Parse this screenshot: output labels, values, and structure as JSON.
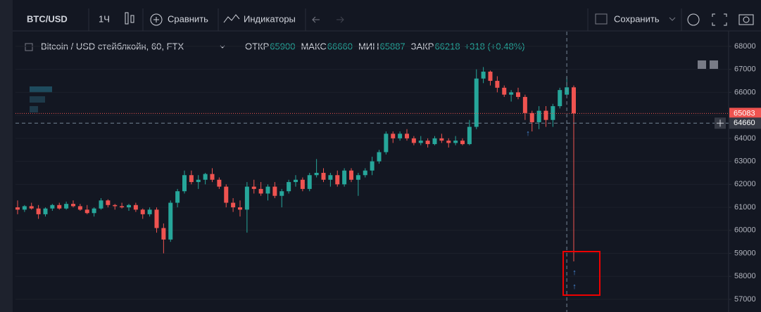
{
  "toolbar": {
    "symbol": "BTC/USD",
    "interval": "1Ч",
    "compare": "Сравнить",
    "indicators": "Индикаторы",
    "save": "Сохранить"
  },
  "chart_data": {
    "type": "candlestick",
    "title": "Bitcoin / USD стейблкойн, 60, FTX",
    "legend_labels": [
      "ОТКР",
      "МАКС",
      "МИН",
      "ЗАКР"
    ],
    "change_label": "+318 (+0.48%)",
    "legend_candle": 79,
    "up_color": "#26a69a",
    "down_color": "#ef5350",
    "ylim": [
      56450,
      68640
    ],
    "yticks": [
      57000,
      58000,
      59000,
      60000,
      61000,
      62000,
      63000,
      64000,
      65000,
      66000,
      67000,
      68000
    ],
    "grid": true,
    "crosshair_price": 64660,
    "ohlc": [
      [
        61000,
        61300,
        60700,
        60900
      ],
      [
        60900,
        61100,
        60800,
        61050
      ],
      [
        61050,
        61200,
        60900,
        60950
      ],
      [
        60950,
        61100,
        60500,
        60700
      ],
      [
        60700,
        61000,
        60600,
        60950
      ],
      [
        60950,
        61150,
        60850,
        61100
      ],
      [
        61100,
        61200,
        60900,
        60950
      ],
      [
        60950,
        61250,
        60900,
        61150
      ],
      [
        61150,
        61300,
        61000,
        61050
      ],
      [
        61050,
        61150,
        60850,
        60900
      ],
      [
        60900,
        61100,
        60700,
        60750
      ],
      [
        60750,
        61000,
        60600,
        60950
      ],
      [
        60950,
        61400,
        60900,
        61300
      ],
      [
        61300,
        61350,
        61000,
        61100
      ],
      [
        61100,
        61150,
        60900,
        61050
      ],
      [
        61050,
        61200,
        60950,
        61000
      ],
      [
        61000,
        61150,
        60850,
        61100
      ],
      [
        61100,
        61200,
        60800,
        60900
      ],
      [
        60900,
        60950,
        60500,
        60700
      ],
      [
        60700,
        61000,
        60600,
        60900
      ],
      [
        60900,
        61000,
        59900,
        60100
      ],
      [
        60100,
        60300,
        59000,
        59600
      ],
      [
        59600,
        61300,
        59500,
        61200
      ],
      [
        61200,
        61800,
        61000,
        61700
      ],
      [
        61700,
        62600,
        61600,
        62400
      ],
      [
        62400,
        62600,
        62000,
        62100
      ],
      [
        62100,
        62400,
        61800,
        62200
      ],
      [
        62200,
        62500,
        62000,
        62450
      ],
      [
        62450,
        62700,
        62100,
        62200
      ],
      [
        62200,
        62300,
        61800,
        61900
      ],
      [
        61900,
        62000,
        61000,
        61200
      ],
      [
        61200,
        61400,
        60800,
        61000
      ],
      [
        61000,
        61300,
        60600,
        60900
      ],
      [
        60900,
        62100,
        59900,
        61900
      ],
      [
        61900,
        62200,
        61600,
        61800
      ],
      [
        61800,
        62100,
        61500,
        61600
      ],
      [
        61600,
        62000,
        61300,
        61900
      ],
      [
        61900,
        62100,
        61400,
        61500
      ],
      [
        61500,
        61800,
        61000,
        61700
      ],
      [
        61700,
        62200,
        61600,
        62100
      ],
      [
        62100,
        62400,
        61900,
        62200
      ],
      [
        62200,
        62300,
        61700,
        61800
      ],
      [
        61800,
        62500,
        61700,
        62400
      ],
      [
        62400,
        63100,
        62300,
        62500
      ],
      [
        62500,
        62700,
        62100,
        62200
      ],
      [
        62200,
        62500,
        61900,
        62400
      ],
      [
        62400,
        62600,
        61900,
        62000
      ],
      [
        62000,
        62700,
        61900,
        62600
      ],
      [
        62600,
        62700,
        62100,
        62200
      ],
      [
        62200,
        62500,
        61500,
        62400
      ],
      [
        62400,
        62700,
        62300,
        62600
      ],
      [
        62600,
        63200,
        62400,
        63000
      ],
      [
        63000,
        63500,
        62900,
        63400
      ],
      [
        63400,
        64300,
        63300,
        64200
      ],
      [
        64200,
        64300,
        63800,
        64000
      ],
      [
        64000,
        64300,
        63900,
        64200
      ],
      [
        64200,
        64400,
        63900,
        64000
      ],
      [
        64000,
        64100,
        63700,
        63800
      ],
      [
        63800,
        64100,
        63700,
        63900
      ],
      [
        63900,
        64000,
        63600,
        63750
      ],
      [
        63750,
        64100,
        63700,
        64000
      ],
      [
        64000,
        64200,
        63800,
        63900
      ],
      [
        63900,
        64000,
        63600,
        63800
      ],
      [
        63800,
        64100,
        63700,
        63900
      ],
      [
        63900,
        64000,
        63700,
        63750
      ],
      [
        63750,
        64800,
        63700,
        64500
      ],
      [
        64500,
        67000,
        64400,
        66600
      ],
      [
        66600,
        67100,
        66400,
        66900
      ],
      [
        66900,
        66950,
        66300,
        66500
      ],
      [
        66500,
        66700,
        66000,
        66200
      ],
      [
        66200,
        66300,
        65800,
        65900
      ],
      [
        65900,
        66100,
        65600,
        66000
      ],
      [
        66000,
        66200,
        65700,
        65800
      ],
      [
        65800,
        65900,
        64800,
        65100
      ],
      [
        65100,
        65200,
        64300,
        64700
      ],
      [
        64700,
        65400,
        64400,
        65200
      ],
      [
        65200,
        65400,
        64500,
        64800
      ],
      [
        64800,
        65500,
        64500,
        65400
      ],
      [
        65400,
        66200,
        65300,
        66100
      ],
      [
        65900,
        66660,
        65887,
        66218
      ],
      [
        66218,
        66300,
        58650,
        65083
      ]
    ]
  }
}
